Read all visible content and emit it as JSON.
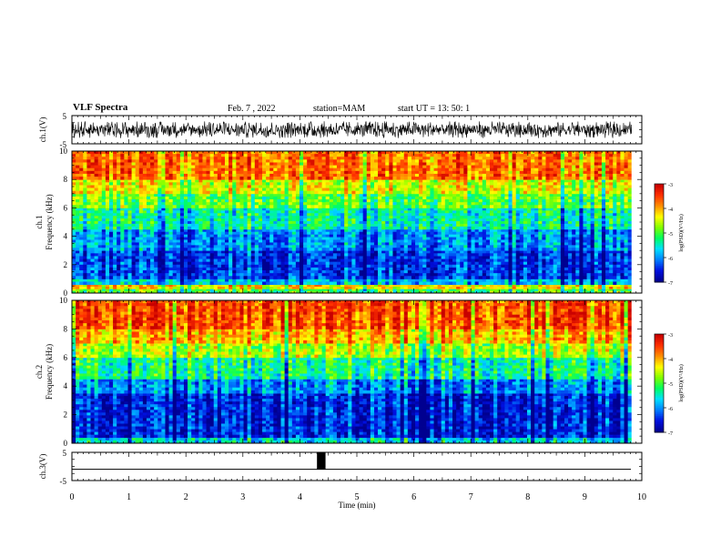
{
  "header": {
    "title": "VLF Spectra",
    "date": "Feb. 7 , 2022",
    "station": "station=MAM",
    "start": "start  UT =   13: 50: 1"
  },
  "colorbar": {
    "label": "log(PSD)(V²/Hz)",
    "ticks": [
      "-3",
      "-4",
      "-5",
      "-6",
      "-7"
    ],
    "colors": [
      "#c80000",
      "#ff3000",
      "#ff9000",
      "#ffff00",
      "#80ff00",
      "#00ff60",
      "#00e0ff",
      "#0080ff",
      "#0010e0",
      "#000090"
    ]
  },
  "chart_data": [
    {
      "type": "line",
      "name": "ch1-waveform",
      "ylabel": "ch.1(V)",
      "ylim": [
        -5,
        5
      ],
      "y_ticks": [
        "5",
        "-5"
      ],
      "description_values": "dense noise waveform spanning approximately -3 to 3 V",
      "color": "#000000"
    },
    {
      "type": "heatmap",
      "name": "ch1-spectrogram",
      "ylabel": "ch.1 Frequency (kHz)",
      "ylim": [
        0,
        10
      ],
      "y_ticks": [
        "0",
        "2",
        "4",
        "6",
        "8",
        "10"
      ],
      "value_range": [
        -7,
        -3
      ],
      "bands_khz_logpsd": [
        [
          0.0,
          0.3,
          -5.0
        ],
        [
          0.3,
          0.6,
          -4.2
        ],
        [
          0.6,
          1.0,
          -5.8
        ],
        [
          1.0,
          3.0,
          -6.4
        ],
        [
          3.0,
          4.5,
          -6.0
        ],
        [
          4.5,
          6.0,
          -5.4
        ],
        [
          6.0,
          7.0,
          -4.9
        ],
        [
          7.0,
          8.0,
          -4.4
        ],
        [
          8.0,
          10.0,
          -3.7
        ]
      ]
    },
    {
      "type": "heatmap",
      "name": "ch2-spectrogram",
      "ylabel": "ch.2 Frequency (kHz)",
      "ylim": [
        0,
        10
      ],
      "y_ticks": [
        "0",
        "2",
        "4",
        "6",
        "8",
        "10"
      ],
      "value_range": [
        -7,
        -3
      ],
      "bands_khz_logpsd": [
        [
          0.0,
          0.4,
          -5.6
        ],
        [
          0.4,
          3.5,
          -6.5
        ],
        [
          3.5,
          4.5,
          -6.0
        ],
        [
          4.5,
          6.0,
          -5.3
        ],
        [
          6.0,
          7.0,
          -4.6
        ],
        [
          7.0,
          8.0,
          -4.0
        ],
        [
          8.0,
          10.0,
          -3.5
        ]
      ]
    },
    {
      "type": "line",
      "name": "ch3-trace",
      "ylabel": "ch.3(V)",
      "ylim": [
        -5,
        5
      ],
      "y_ticks": [
        "5",
        "-5"
      ],
      "baseline": -1,
      "pulse": {
        "start_min": 4.3,
        "end_min": 4.45,
        "high": 5,
        "low": -1
      }
    }
  ],
  "xaxis": {
    "label": "Time  (min)",
    "range": [
      0,
      10
    ],
    "ticks": [
      "0",
      "1",
      "2",
      "3",
      "4",
      "5",
      "6",
      "7",
      "8",
      "9",
      "10"
    ],
    "data_end_min": 9.82
  }
}
